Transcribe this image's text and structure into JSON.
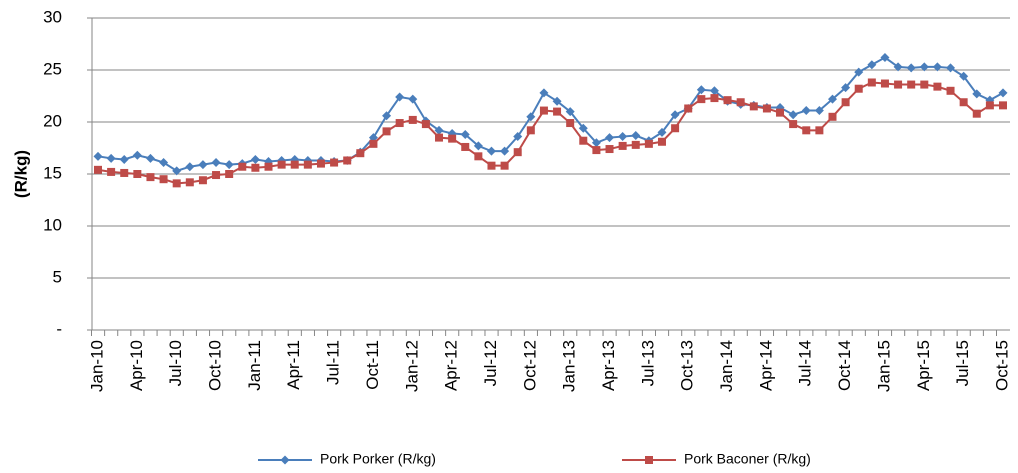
{
  "chart_data": {
    "type": "line",
    "y_label": "(R/kg)",
    "categories": [
      "Jan-10",
      null,
      null,
      "Apr-10",
      null,
      null,
      "Jul-10",
      null,
      null,
      "Oct-10",
      null,
      null,
      "Jan-11",
      null,
      null,
      "Apr-11",
      null,
      null,
      "Jul-11",
      null,
      null,
      "Oct-11",
      null,
      null,
      "Jan-12",
      null,
      null,
      "Apr-12",
      null,
      null,
      "Jul-12",
      null,
      null,
      "Oct-12",
      null,
      null,
      "Jan-13",
      null,
      null,
      "Apr-13",
      null,
      null,
      "Jul-13",
      null,
      null,
      "Oct-13",
      null,
      null,
      "Jan-14",
      null,
      null,
      "Apr-14",
      null,
      null,
      "Jul-14",
      null,
      null,
      "Oct-14",
      null,
      null,
      "Jan-15",
      null,
      null,
      "Apr-15",
      null,
      null,
      "Jul-15",
      null,
      null,
      "Oct-15"
    ],
    "series": [
      {
        "name": "Pork Porker (R/kg)",
        "color": "#4a7ebb",
        "marker": "diamond",
        "values": [
          16.7,
          16.5,
          16.4,
          16.8,
          16.5,
          16.1,
          15.3,
          15.7,
          15.9,
          16.1,
          15.9,
          16.0,
          16.4,
          16.2,
          16.3,
          16.4,
          16.3,
          16.3,
          16.2,
          16.3,
          17.1,
          18.5,
          20.6,
          22.4,
          22.2,
          20.1,
          19.2,
          18.9,
          18.8,
          17.7,
          17.2,
          17.2,
          18.6,
          20.5,
          22.8,
          22.0,
          21.0,
          19.4,
          18.0,
          18.5,
          18.6,
          18.7,
          18.2,
          19.0,
          20.7,
          21.3,
          23.1,
          23.0,
          22.0,
          21.7,
          21.6,
          21.4,
          21.4,
          20.7,
          21.1,
          21.1,
          22.2,
          23.3,
          24.8,
          25.5,
          26.2,
          25.3,
          25.2,
          25.3,
          25.3,
          25.2,
          24.4,
          22.7,
          22.1,
          22.8
        ]
      },
      {
        "name": "Pork Baconer (R/kg)",
        "color": "#be4b48",
        "marker": "square",
        "values": [
          15.4,
          15.2,
          15.1,
          15.0,
          14.7,
          14.5,
          14.1,
          14.2,
          14.4,
          14.9,
          15.0,
          15.7,
          15.6,
          15.7,
          15.9,
          15.9,
          15.9,
          16.0,
          16.1,
          16.3,
          17.0,
          17.9,
          19.1,
          19.9,
          20.2,
          19.8,
          18.5,
          18.4,
          17.6,
          16.7,
          15.8,
          15.8,
          17.1,
          19.2,
          21.1,
          21.0,
          19.9,
          18.2,
          17.3,
          17.4,
          17.7,
          17.8,
          17.9,
          18.1,
          19.4,
          21.3,
          22.2,
          22.3,
          22.1,
          21.9,
          21.5,
          21.3,
          20.9,
          19.8,
          19.2,
          19.2,
          20.5,
          21.9,
          23.2,
          23.8,
          23.7,
          23.6,
          23.6,
          23.6,
          23.4,
          23.0,
          21.9,
          20.8,
          21.6,
          21.6
        ]
      }
    ],
    "ylim": [
      0,
      30
    ],
    "yticks": [
      {
        "value": 0,
        "label": "-"
      },
      5,
      10,
      15,
      20,
      25,
      30
    ],
    "grid": true,
    "legend": "bottom"
  }
}
